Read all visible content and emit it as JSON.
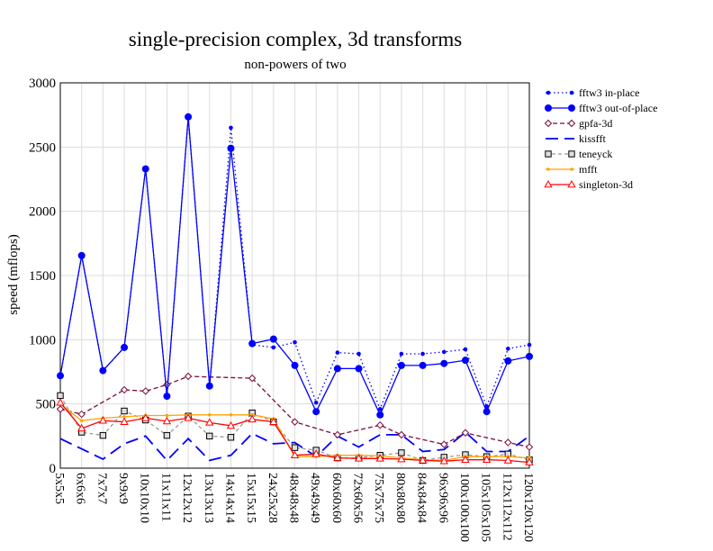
{
  "chart_data": {
    "type": "line",
    "title": "single-precision complex, 3d transforms",
    "subtitle": "non-powers of two",
    "xlabel": "",
    "ylabel": "speed (mflops)",
    "ylim": [
      0,
      3000
    ],
    "yticks": [
      0,
      500,
      1000,
      1500,
      2000,
      2500,
      3000
    ],
    "grid": true,
    "legend_position": "right",
    "categories": [
      "5x5x5",
      "6x6x6",
      "7x7x7",
      "9x9x9",
      "10x10x10",
      "11x11x11",
      "12x12x12",
      "13x13x13",
      "14x14x14",
      "15x15x15",
      "24x25x28",
      "48x48x48",
      "49x49x49",
      "60x60x60",
      "72x60x56",
      "75x75x75",
      "80x80x80",
      "84x84x84",
      "96x96x96",
      "100x100x100",
      "105x105x105",
      "112x112x112",
      "120x120x120"
    ],
    "series": [
      {
        "name": "fftw3 in-place",
        "color": "#0000ff",
        "dash": "1.5 3",
        "marker": "dot",
        "values": [
          720,
          1650,
          760,
          940,
          2330,
          560,
          2730,
          640,
          2650,
          960,
          940,
          980,
          510,
          900,
          890,
          460,
          890,
          890,
          905,
          925,
          480,
          930,
          960
        ]
      },
      {
        "name": "fftw3 out-of-place",
        "color": "#0000ff",
        "dash": "",
        "marker": "bigdot",
        "values": [
          720,
          1655,
          760,
          940,
          2330,
          560,
          2735,
          640,
          2490,
          970,
          1005,
          800,
          440,
          775,
          775,
          415,
          800,
          800,
          815,
          840,
          440,
          835,
          870
        ]
      },
      {
        "name": "gpfa-3d",
        "color": "#7a0b3a",
        "dash": "5 3",
        "marker": "diamond",
        "values": [
          460,
          420,
          null,
          610,
          600,
          650,
          715,
          null,
          null,
          700,
          null,
          360,
          null,
          260,
          null,
          335,
          260,
          null,
          185,
          275,
          null,
          200,
          165
        ]
      },
      {
        "name": "kissfft",
        "color": "#0000ff",
        "dash": "14 7",
        "marker": "none",
        "values": [
          230,
          150,
          70,
          190,
          250,
          60,
          230,
          60,
          100,
          270,
          190,
          200,
          90,
          250,
          165,
          260,
          260,
          130,
          145,
          280,
          130,
          130,
          250
        ]
      },
      {
        "name": "teneyck",
        "color": "#9a9a9a",
        "dash": "4 3",
        "marker": "square",
        "values": [
          565,
          280,
          255,
          445,
          375,
          255,
          405,
          250,
          240,
          430,
          360,
          160,
          140,
          80,
          80,
          100,
          120,
          60,
          85,
          105,
          90,
          110,
          65
        ]
      },
      {
        "name": "mfft",
        "color": "#ffa500",
        "dash": "",
        "marker": "smalldot",
        "values": [
          500,
          370,
          390,
          400,
          410,
          410,
          415,
          415,
          415,
          415,
          385,
          90,
          90,
          100,
          100,
          95,
          80,
          65,
          60,
          90,
          90,
          90,
          80
        ]
      },
      {
        "name": "singleton-3d",
        "color": "#ff0000",
        "dash": "",
        "marker": "triangle",
        "values": [
          510,
          310,
          370,
          360,
          390,
          365,
          390,
          355,
          330,
          380,
          360,
          100,
          110,
          80,
          75,
          75,
          70,
          60,
          55,
          65,
          65,
          60,
          45
        ]
      }
    ]
  }
}
